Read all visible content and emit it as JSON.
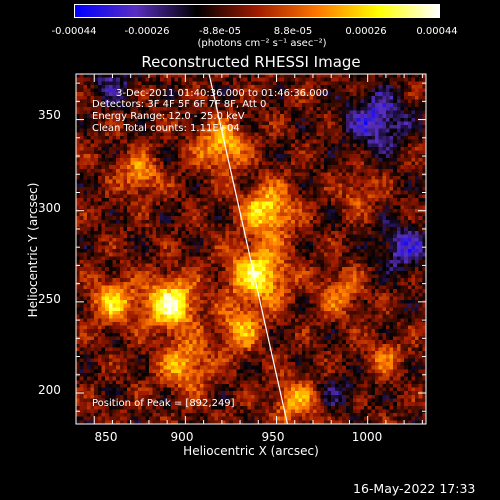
{
  "colorbar": {
    "tick_labels": [
      "-0.00044",
      "-0.00026",
      "-8.8e-05",
      "8.8e-05",
      "0.00026",
      "0.00044"
    ],
    "units": "(photons cm⁻² s⁻¹ asec⁻²)",
    "colors": [
      "#0000ff",
      "#5a2fc0",
      "#000000",
      "#a01a00",
      "#ff7800",
      "#ffff00",
      "#ffffff"
    ]
  },
  "chart_data": {
    "type": "heatmap",
    "title": "Reconstructed RHESSI Image",
    "xlabel": "Heliocentric X (arcsec)",
    "ylabel": "Heliocentric Y (arcsec)",
    "xlim": [
      840,
      1032
    ],
    "ylim": [
      183,
      375
    ],
    "x_ticks": [
      "850",
      "900",
      "950",
      "1000"
    ],
    "y_ticks": [
      "200",
      "250",
      "300",
      "350"
    ],
    "x_tick_values": [
      850,
      900,
      950,
      1000
    ],
    "y_tick_values": [
      200,
      250,
      300,
      350
    ],
    "zlim": [
      -0.00044,
      0.00044
    ],
    "annotations": [
      "3-Dec-2011 01:40:36.000 to 01:46:36.000",
      "Detectors: 3F 4F 5F 6F 7F 8F, Att 0",
      "Energy Range: 12.0 - 25.0 keV",
      "Clean     Total counts: 1.11E+04"
    ],
    "peak_label": "Position of Peak = [892,249]",
    "peak": [
      892,
      249
    ],
    "limb_line": [
      [
        913,
        375
      ],
      [
        956,
        183
      ]
    ],
    "grid": false
  },
  "footer": {
    "timestamp": "16-May-2022 17:33"
  }
}
